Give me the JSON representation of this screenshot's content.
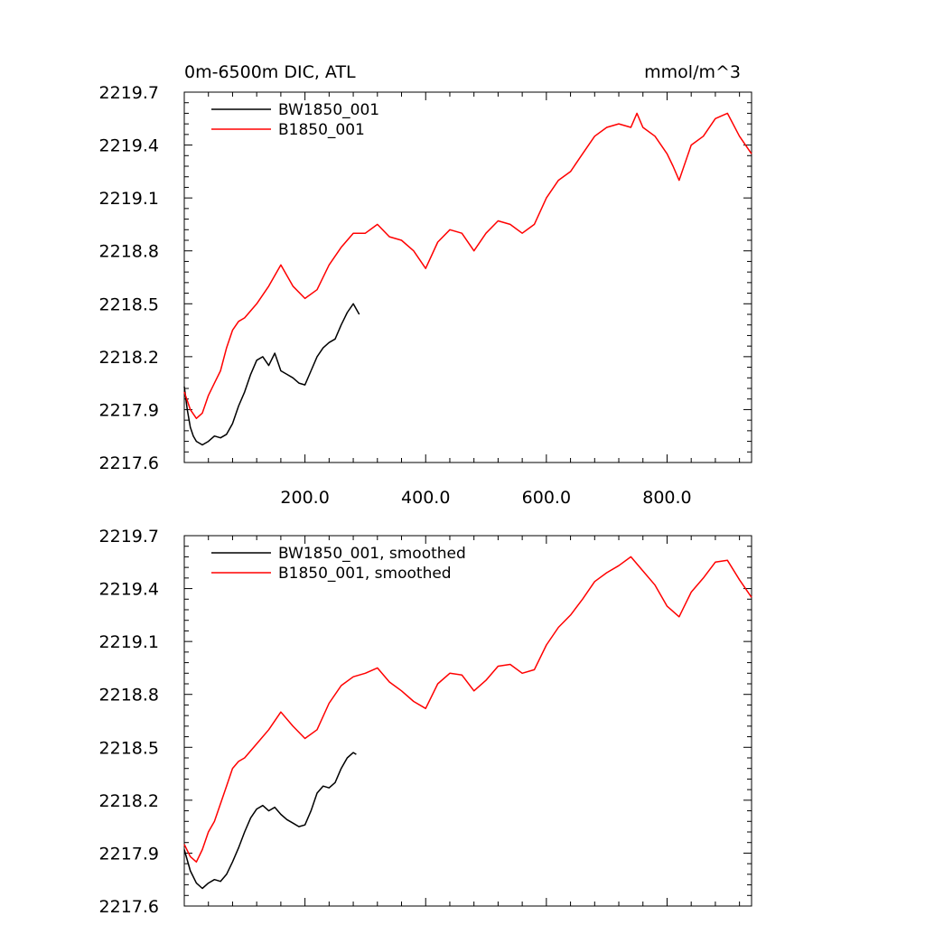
{
  "colors": {
    "BW1850_001": "#000000",
    "B1850_001": "#ff0000"
  },
  "chart_data": [
    {
      "type": "line",
      "title_left": "0m-6500m DIC, ATL",
      "title_right": "mmol/m^3",
      "xlim": [
        0,
        940
      ],
      "ylim": [
        2217.6,
        2219.7
      ],
      "yticks": [
        2217.6,
        2217.9,
        2218.2,
        2218.5,
        2218.8,
        2219.1,
        2219.4,
        2219.7
      ],
      "ytick_labels": [
        "2217.6",
        "2217.9",
        "2218.2",
        "2218.5",
        "2218.8",
        "2219.1",
        "2219.4",
        "2219.7"
      ],
      "xticks": [
        200,
        400,
        600,
        800
      ],
      "xtick_labels": [
        "200.0",
        "400.0",
        "600.0",
        "800.0"
      ],
      "legend_position": "top-left",
      "series": [
        {
          "name": "BW1850_001",
          "color": "#000000",
          "x": [
            0,
            5,
            10,
            15,
            20,
            30,
            40,
            50,
            60,
            70,
            80,
            90,
            100,
            110,
            120,
            130,
            140,
            150,
            160,
            170,
            180,
            190,
            200,
            210,
            220,
            230,
            240,
            250,
            260,
            270,
            280,
            290
          ],
          "y": [
            2218.03,
            2217.9,
            2217.8,
            2217.75,
            2217.72,
            2217.7,
            2217.72,
            2217.75,
            2217.74,
            2217.76,
            2217.82,
            2217.92,
            2218.0,
            2218.1,
            2218.18,
            2218.2,
            2218.15,
            2218.22,
            2218.12,
            2218.1,
            2218.08,
            2218.05,
            2218.04,
            2218.12,
            2218.2,
            2218.25,
            2218.28,
            2218.3,
            2218.38,
            2218.45,
            2218.5,
            2218.44
          ]
        },
        {
          "name": "B1850_001",
          "color": "#ff0000",
          "x": [
            0,
            10,
            20,
            30,
            40,
            50,
            60,
            70,
            80,
            90,
            100,
            120,
            140,
            160,
            180,
            200,
            220,
            240,
            260,
            280,
            300,
            320,
            340,
            360,
            380,
            400,
            420,
            440,
            460,
            480,
            500,
            520,
            540,
            560,
            580,
            600,
            620,
            640,
            660,
            680,
            700,
            720,
            740,
            750,
            760,
            780,
            800,
            810,
            820,
            840,
            860,
            880,
            900,
            920,
            940
          ],
          "y": [
            2218.0,
            2217.9,
            2217.85,
            2217.88,
            2217.98,
            2218.05,
            2218.12,
            2218.25,
            2218.35,
            2218.4,
            2218.42,
            2218.5,
            2218.6,
            2218.72,
            2218.6,
            2218.53,
            2218.58,
            2218.72,
            2218.82,
            2218.9,
            2218.9,
            2218.95,
            2218.88,
            2218.86,
            2218.8,
            2218.7,
            2218.85,
            2218.92,
            2218.9,
            2218.8,
            2218.9,
            2218.97,
            2218.95,
            2218.9,
            2218.95,
            2219.1,
            2219.2,
            2219.25,
            2219.35,
            2219.45,
            2219.5,
            2219.52,
            2219.5,
            2219.58,
            2219.5,
            2219.45,
            2219.35,
            2219.28,
            2219.2,
            2219.4,
            2219.45,
            2219.55,
            2219.58,
            2219.45,
            2219.35
          ]
        }
      ]
    },
    {
      "type": "line",
      "xlim": [
        0,
        940
      ],
      "ylim": [
        2217.6,
        2219.7
      ],
      "yticks": [
        2217.6,
        2217.9,
        2218.2,
        2218.5,
        2218.8,
        2219.1,
        2219.4,
        2219.7
      ],
      "ytick_labels": [
        "2217.6",
        "2217.9",
        "2218.2",
        "2218.5",
        "2218.8",
        "2219.1",
        "2219.4",
        "2219.7"
      ],
      "xticks": [
        200,
        400,
        600,
        800
      ],
      "legend_position": "top-left",
      "series": [
        {
          "name": "BW1850_001, smoothed",
          "color": "#000000",
          "x": [
            0,
            10,
            20,
            30,
            40,
            50,
            60,
            70,
            80,
            90,
            100,
            110,
            120,
            130,
            140,
            150,
            160,
            170,
            180,
            190,
            200,
            210,
            220,
            230,
            240,
            250,
            260,
            270,
            280,
            285
          ],
          "y": [
            2217.92,
            2217.8,
            2217.73,
            2217.7,
            2217.73,
            2217.75,
            2217.74,
            2217.78,
            2217.85,
            2217.93,
            2218.02,
            2218.1,
            2218.15,
            2218.17,
            2218.14,
            2218.16,
            2218.12,
            2218.09,
            2218.07,
            2218.05,
            2218.06,
            2218.14,
            2218.24,
            2218.28,
            2218.27,
            2218.3,
            2218.38,
            2218.44,
            2218.47,
            2218.46
          ]
        },
        {
          "name": "B1850_001, smoothed",
          "color": "#ff0000",
          "x": [
            0,
            10,
            20,
            30,
            40,
            50,
            60,
            70,
            80,
            90,
            100,
            120,
            140,
            160,
            180,
            200,
            220,
            240,
            260,
            280,
            300,
            320,
            340,
            360,
            380,
            400,
            420,
            440,
            460,
            480,
            500,
            520,
            540,
            560,
            580,
            600,
            620,
            640,
            660,
            680,
            700,
            720,
            740,
            760,
            780,
            800,
            820,
            840,
            860,
            880,
            900,
            920,
            940
          ],
          "y": [
            2217.95,
            2217.88,
            2217.85,
            2217.92,
            2218.02,
            2218.08,
            2218.18,
            2218.28,
            2218.38,
            2218.42,
            2218.44,
            2218.52,
            2218.6,
            2218.7,
            2218.62,
            2218.55,
            2218.6,
            2218.75,
            2218.85,
            2218.9,
            2218.92,
            2218.95,
            2218.87,
            2218.82,
            2218.76,
            2218.72,
            2218.86,
            2218.92,
            2218.91,
            2218.82,
            2218.88,
            2218.96,
            2218.97,
            2218.92,
            2218.94,
            2219.08,
            2219.18,
            2219.25,
            2219.34,
            2219.44,
            2219.49,
            2219.53,
            2219.58,
            2219.5,
            2219.42,
            2219.3,
            2219.24,
            2219.38,
            2219.46,
            2219.55,
            2219.56,
            2219.45,
            2219.35
          ]
        }
      ]
    }
  ]
}
